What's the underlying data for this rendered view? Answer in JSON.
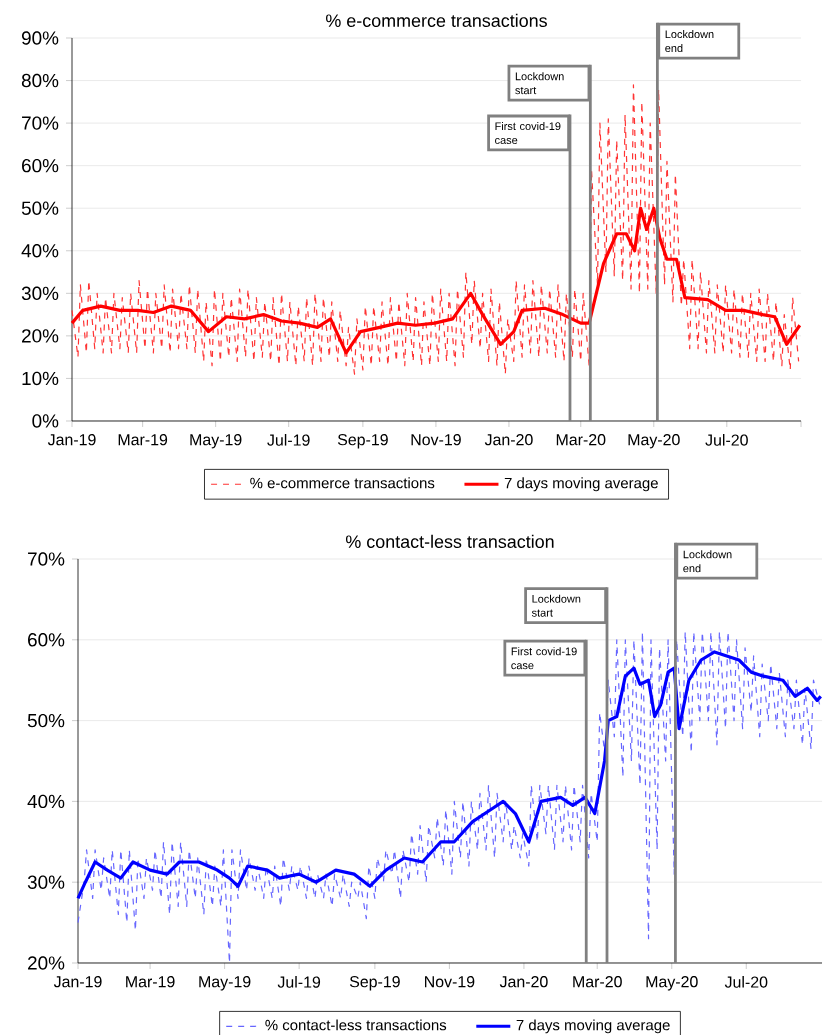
{
  "chart_data": [
    {
      "type": "line",
      "title": "% e-commerce transactions",
      "x": [
        "2019-01-01",
        "2019-01-06",
        "2019-01-08",
        "2019-01-13",
        "2019-01-15",
        "2019-01-20",
        "2019-01-22",
        "2019-01-27",
        "2019-01-29",
        "2019-02-03",
        "2019-02-05",
        "2019-02-10",
        "2019-02-12",
        "2019-02-17",
        "2019-02-19",
        "2019-02-24",
        "2019-02-26",
        "2019-03-03",
        "2019-03-05",
        "2019-03-10",
        "2019-03-12",
        "2019-03-17",
        "2019-03-19",
        "2019-03-24",
        "2019-03-26",
        "2019-03-31",
        "2019-04-02",
        "2019-04-07",
        "2019-04-09",
        "2019-04-14",
        "2019-04-16",
        "2019-04-21",
        "2019-04-23",
        "2019-04-28",
        "2019-04-30",
        "2019-05-05",
        "2019-05-07",
        "2019-05-12",
        "2019-05-14",
        "2019-05-19",
        "2019-05-21",
        "2019-05-26",
        "2019-05-28",
        "2019-06-02",
        "2019-06-04",
        "2019-06-09",
        "2019-06-11",
        "2019-06-16",
        "2019-06-18",
        "2019-06-23",
        "2019-06-25",
        "2019-06-30",
        "2019-07-02",
        "2019-07-07",
        "2019-07-09",
        "2019-07-14",
        "2019-07-16",
        "2019-07-21",
        "2019-07-23",
        "2019-07-28",
        "2019-07-30",
        "2019-08-04",
        "2019-08-06",
        "2019-08-11",
        "2019-08-13",
        "2019-08-18",
        "2019-08-20",
        "2019-08-25",
        "2019-08-27",
        "2019-09-01",
        "2019-09-03",
        "2019-09-08",
        "2019-09-10",
        "2019-09-15",
        "2019-09-17",
        "2019-09-22",
        "2019-09-24",
        "2019-09-29",
        "2019-10-01",
        "2019-10-06",
        "2019-10-08",
        "2019-10-13",
        "2019-10-15",
        "2019-10-20",
        "2019-10-22",
        "2019-10-27",
        "2019-10-29",
        "2019-11-03",
        "2019-11-05",
        "2019-11-10",
        "2019-11-12",
        "2019-11-17",
        "2019-11-19",
        "2019-11-24",
        "2019-11-26",
        "2019-12-01",
        "2019-12-03",
        "2019-12-08",
        "2019-12-10",
        "2019-12-15",
        "2019-12-17",
        "2019-12-22",
        "2019-12-24",
        "2019-12-29",
        "2019-12-31",
        "2020-01-05",
        "2020-01-07",
        "2020-01-12",
        "2020-01-14",
        "2020-01-19",
        "2020-01-21",
        "2020-01-26",
        "2020-01-28",
        "2020-02-02",
        "2020-02-04",
        "2020-02-09",
        "2020-02-11",
        "2020-02-16",
        "2020-02-18",
        "2020-02-23",
        "2020-02-25",
        "2020-03-01",
        "2020-03-03",
        "2020-03-08",
        "2020-03-10",
        "2020-03-15",
        "2020-03-17",
        "2020-03-22",
        "2020-03-24",
        "2020-03-29",
        "2020-03-31",
        "2020-04-05",
        "2020-04-07",
        "2020-04-12",
        "2020-04-14",
        "2020-04-19",
        "2020-04-21",
        "2020-04-26",
        "2020-04-28",
        "2020-05-03",
        "2020-05-05",
        "2020-05-10",
        "2020-05-12",
        "2020-05-17",
        "2020-05-19",
        "2020-05-24",
        "2020-05-26",
        "2020-05-31",
        "2020-06-02",
        "2020-06-07",
        "2020-06-09",
        "2020-06-14",
        "2020-06-16",
        "2020-06-21",
        "2020-06-23",
        "2020-06-28",
        "2020-06-30",
        "2020-07-05",
        "2020-07-07",
        "2020-07-12",
        "2020-07-14",
        "2020-07-19",
        "2020-07-21",
        "2020-07-26",
        "2020-07-28",
        "2020-08-02",
        "2020-08-04",
        "2020-08-09",
        "2020-08-11",
        "2020-08-16",
        "2020-08-18",
        "2020-08-23",
        "2020-08-25",
        "2020-08-30"
      ],
      "xlim": [
        "2019-01-01",
        "2020-09-01"
      ],
      "xticks": [
        {
          "value": "2019-01-01",
          "label": "Jan-19"
        },
        {
          "value": "2019-03-01",
          "label": "Mar-19"
        },
        {
          "value": "2019-05-01",
          "label": "May-19"
        },
        {
          "value": "2019-07-01",
          "label": "Jul-19"
        },
        {
          "value": "2019-09-01",
          "label": "Sep-19"
        },
        {
          "value": "2019-11-01",
          "label": "Nov-19"
        },
        {
          "value": "2020-01-01",
          "label": "Jan-20"
        },
        {
          "value": "2020-03-01",
          "label": "Mar-20"
        },
        {
          "value": "2020-05-01",
          "label": "May-20"
        },
        {
          "value": "2020-07-01",
          "label": "Jul-20"
        },
        {
          "value": "2020-09-01",
          "label": null
        }
      ],
      "ylim": [
        0,
        90
      ],
      "yticks": [
        {
          "value": 0,
          "label": "0%"
        },
        {
          "value": 10,
          "label": "10%"
        },
        {
          "value": 20,
          "label": "20%"
        },
        {
          "value": 30,
          "label": "30%"
        },
        {
          "value": 40,
          "label": "40%"
        },
        {
          "value": 50,
          "label": "50%"
        },
        {
          "value": 60,
          "label": "60%"
        },
        {
          "value": 70,
          "label": "70%"
        },
        {
          "value": 80,
          "label": "80%"
        },
        {
          "value": 90,
          "label": "90%"
        }
      ],
      "grid": "y",
      "legend": "bottom",
      "marker": "none",
      "series": [
        {
          "name": "% e-commerce transactions",
          "color": "#ff3333",
          "line_style": "dashed",
          "values": [
            26,
            15,
            32,
            16,
            33,
            17,
            30,
            16,
            29,
            16,
            30,
            17,
            29,
            16,
            30,
            16,
            33,
            17,
            31,
            16,
            30,
            17,
            32,
            16,
            31,
            17,
            30,
            17,
            32,
            16,
            31,
            14,
            28,
            13,
            31,
            14,
            30,
            15,
            29,
            14,
            31,
            15,
            31,
            14,
            29,
            15,
            28,
            14,
            29,
            13,
            30,
            14,
            28,
            13,
            27,
            14,
            29,
            13,
            30,
            14,
            29,
            15,
            28,
            14,
            26,
            13,
            22,
            11,
            24,
            12,
            27,
            13,
            27,
            14,
            28,
            13,
            29,
            14,
            28,
            13,
            30,
            14,
            29,
            13,
            28,
            13,
            30,
            14,
            31,
            14,
            30,
            13,
            31,
            15,
            35,
            18,
            33,
            17,
            30,
            14,
            31,
            13,
            28,
            11,
            24,
            14,
            33,
            15,
            32,
            16,
            33,
            15,
            32,
            16,
            31,
            15,
            32,
            14,
            30,
            15,
            31,
            14,
            30,
            13,
            59,
            32,
            70,
            35,
            71,
            34,
            66,
            33,
            72,
            31,
            79,
            30,
            75,
            31,
            70,
            30,
            78,
            32,
            61,
            28,
            58,
            27,
            38,
            17,
            38,
            17,
            35,
            16,
            33,
            16,
            32,
            16,
            32,
            16,
            31,
            15,
            30,
            15,
            30,
            14,
            31,
            14,
            30,
            14,
            28,
            13,
            25,
            12,
            29,
            14
          ]
        },
        {
          "name": "7 days moving average",
          "color": "#ff0000",
          "line_style": "solid",
          "x": [
            "2019-01-01",
            "2019-01-10",
            "2019-01-25",
            "2019-02-10",
            "2019-02-25",
            "2019-03-10",
            "2019-03-25",
            "2019-04-10",
            "2019-04-25",
            "2019-05-10",
            "2019-05-25",
            "2019-06-10",
            "2019-06-25",
            "2019-07-10",
            "2019-07-25",
            "2019-08-05",
            "2019-08-18",
            "2019-08-30",
            "2019-09-15",
            "2019-09-30",
            "2019-10-15",
            "2019-10-31",
            "2019-11-15",
            "2019-11-30",
            "2019-12-10",
            "2019-12-25",
            "2020-01-05",
            "2020-01-12",
            "2020-01-31",
            "2020-02-15",
            "2020-03-01",
            "2020-03-08",
            "2020-03-20",
            "2020-03-31",
            "2020-04-08",
            "2020-04-15",
            "2020-04-20",
            "2020-04-25",
            "2020-05-01",
            "2020-05-06",
            "2020-05-12",
            "2020-05-20",
            "2020-05-27",
            "2020-06-15",
            "2020-06-30",
            "2020-07-15",
            "2020-07-31",
            "2020-08-10",
            "2020-08-20",
            "2020-08-31"
          ],
          "values": [
            23,
            26,
            27,
            26,
            26,
            25.5,
            27,
            26,
            21,
            24.5,
            24,
            25,
            23.5,
            23,
            22,
            24,
            16,
            21,
            22,
            23,
            22.5,
            23,
            24,
            30,
            25,
            18,
            21,
            26,
            26.5,
            25,
            23,
            23,
            37,
            44,
            44,
            40,
            50,
            45,
            50,
            43,
            38,
            38,
            29,
            28.5,
            26,
            26,
            25,
            24.5,
            18,
            22.5
          ]
        }
      ],
      "ref_lines": [
        {
          "axis": "x",
          "value": "2020-02-21",
          "label": "First covid-19 case",
          "color": "#808080"
        },
        {
          "axis": "x",
          "value": "2020-03-09",
          "label": "Lockdown start",
          "color": "#808080"
        },
        {
          "axis": "x",
          "value": "2020-05-04",
          "label": "Lockdown end",
          "color": "#808080"
        }
      ]
    },
    {
      "type": "line",
      "title": "% contact-less transaction",
      "x": [
        "2019-01-01",
        "2019-01-06",
        "2019-01-08",
        "2019-01-13",
        "2019-01-15",
        "2019-01-20",
        "2019-01-22",
        "2019-01-27",
        "2019-01-29",
        "2019-02-03",
        "2019-02-05",
        "2019-02-10",
        "2019-02-12",
        "2019-02-17",
        "2019-02-19",
        "2019-02-24",
        "2019-02-26",
        "2019-03-03",
        "2019-03-05",
        "2019-03-10",
        "2019-03-12",
        "2019-03-17",
        "2019-03-19",
        "2019-03-24",
        "2019-03-26",
        "2019-03-31",
        "2019-04-02",
        "2019-04-07",
        "2019-04-09",
        "2019-04-14",
        "2019-04-16",
        "2019-04-21",
        "2019-04-23",
        "2019-04-28",
        "2019-04-30",
        "2019-05-05",
        "2019-05-07",
        "2019-05-12",
        "2019-05-14",
        "2019-05-19",
        "2019-05-21",
        "2019-05-26",
        "2019-05-28",
        "2019-06-02",
        "2019-06-04",
        "2019-06-09",
        "2019-06-11",
        "2019-06-16",
        "2019-06-18",
        "2019-06-23",
        "2019-06-25",
        "2019-06-30",
        "2019-07-02",
        "2019-07-07",
        "2019-07-09",
        "2019-07-14",
        "2019-07-16",
        "2019-07-21",
        "2019-07-23",
        "2019-07-28",
        "2019-07-30",
        "2019-08-04",
        "2019-08-06",
        "2019-08-11",
        "2019-08-13",
        "2019-08-18",
        "2019-08-20",
        "2019-08-25",
        "2019-08-27",
        "2019-09-01",
        "2019-09-03",
        "2019-09-08",
        "2019-09-10",
        "2019-09-15",
        "2019-09-17",
        "2019-09-22",
        "2019-09-24",
        "2019-09-29",
        "2019-10-01",
        "2019-10-06",
        "2019-10-08",
        "2019-10-13",
        "2019-10-15",
        "2019-10-20",
        "2019-10-22",
        "2019-10-27",
        "2019-10-29",
        "2019-11-03",
        "2019-11-05",
        "2019-11-10",
        "2019-11-12",
        "2019-11-17",
        "2019-11-19",
        "2019-11-24",
        "2019-11-26",
        "2019-12-01",
        "2019-12-03",
        "2019-12-08",
        "2019-12-10",
        "2019-12-15",
        "2019-12-17",
        "2019-12-22",
        "2019-12-24",
        "2019-12-29",
        "2019-12-31",
        "2020-01-05",
        "2020-01-07",
        "2020-01-12",
        "2020-01-14",
        "2020-01-19",
        "2020-01-21",
        "2020-01-26",
        "2020-01-28",
        "2020-02-02",
        "2020-02-04",
        "2020-02-09",
        "2020-02-11",
        "2020-02-16",
        "2020-02-18",
        "2020-02-23",
        "2020-02-25",
        "2020-03-01",
        "2020-03-03",
        "2020-03-08",
        "2020-03-10",
        "2020-03-15",
        "2020-03-17",
        "2020-03-22",
        "2020-03-24",
        "2020-03-29",
        "2020-03-31",
        "2020-04-05",
        "2020-04-07",
        "2020-04-12",
        "2020-04-14",
        "2020-04-19",
        "2020-04-21",
        "2020-04-26",
        "2020-04-28",
        "2020-05-03",
        "2020-05-05",
        "2020-05-10",
        "2020-05-12",
        "2020-05-17",
        "2020-05-19",
        "2020-05-24",
        "2020-05-26",
        "2020-05-31",
        "2020-06-02",
        "2020-06-07",
        "2020-06-09",
        "2020-06-14",
        "2020-06-16",
        "2020-06-21",
        "2020-06-23",
        "2020-06-28",
        "2020-06-30",
        "2020-07-05",
        "2020-07-07",
        "2020-07-12",
        "2020-07-14",
        "2020-07-19",
        "2020-07-21",
        "2020-07-26",
        "2020-07-28",
        "2020-08-02",
        "2020-08-04",
        "2020-08-09",
        "2020-08-11",
        "2020-08-16",
        "2020-08-18",
        "2020-08-23",
        "2020-08-25",
        "2020-08-30"
      ],
      "xlim": [
        "2019-01-01",
        "2020-09-01"
      ],
      "xticks": [
        {
          "value": "2019-01-01",
          "label": "Jan-19"
        },
        {
          "value": "2019-03-01",
          "label": "Mar-19"
        },
        {
          "value": "2019-05-01",
          "label": "May-19"
        },
        {
          "value": "2019-07-01",
          "label": "Jul-19"
        },
        {
          "value": "2019-09-01",
          "label": "Sep-19"
        },
        {
          "value": "2019-11-01",
          "label": "Nov-19"
        },
        {
          "value": "2020-01-01",
          "label": "Jan-20"
        },
        {
          "value": "2020-03-01",
          "label": "Mar-20"
        },
        {
          "value": "2020-05-01",
          "label": "May-20"
        },
        {
          "value": "2020-07-01",
          "label": "Jul-20"
        }
      ],
      "ylim": [
        20,
        70
      ],
      "yticks": [
        {
          "value": 20,
          "label": "20%"
        },
        {
          "value": 30,
          "label": "30%"
        },
        {
          "value": 40,
          "label": "40%"
        },
        {
          "value": 50,
          "label": "50%"
        },
        {
          "value": 60,
          "label": "60%"
        },
        {
          "value": 70,
          "label": "70%"
        }
      ],
      "grid": "y",
      "legend": "bottom",
      "marker": "none",
      "series": [
        {
          "name": "% contact-less transactions",
          "color": "#6666ff",
          "line_style": "dashed",
          "values": [
            25,
            30,
            34,
            28,
            34,
            29,
            33,
            28,
            34,
            26,
            34,
            25,
            34,
            24,
            33,
            28,
            33,
            29,
            34,
            28,
            35,
            26,
            35,
            27,
            35,
            27,
            34,
            28,
            33,
            26,
            33,
            27,
            32,
            27,
            34,
            20,
            34,
            28,
            34,
            29,
            33,
            29,
            32,
            28,
            32,
            28,
            32,
            27,
            33,
            29,
            32,
            29,
            32,
            28,
            32,
            28,
            31,
            28,
            31,
            27,
            31,
            28,
            31,
            27,
            30,
            28,
            30,
            25.5,
            32,
            28,
            33,
            30,
            34,
            31,
            34,
            28,
            34,
            30,
            36,
            31,
            37,
            30,
            37,
            33,
            38,
            32,
            39,
            31,
            40,
            33,
            40,
            32,
            40,
            34,
            41,
            34,
            42,
            33,
            41,
            35,
            40,
            34,
            37,
            33,
            36,
            32,
            42,
            35,
            42,
            36,
            42,
            34,
            42,
            35,
            42,
            34,
            42,
            35,
            42,
            33,
            41,
            35,
            51,
            45,
            55,
            48,
            60,
            43,
            60,
            45,
            60,
            42,
            61,
            23,
            60,
            34,
            59,
            45,
            60,
            31,
            60,
            48,
            61,
            46,
            61,
            50,
            61,
            50,
            61,
            47,
            61,
            49,
            61,
            50,
            60,
            49,
            59,
            51,
            58,
            48,
            57,
            50,
            57,
            49,
            56,
            48,
            55,
            49,
            55,
            47,
            54,
            46.5,
            55,
            52
          ]
        },
        {
          "name": "7 days moving average",
          "color": "#0000ff",
          "line_style": "solid",
          "x": [
            "2019-01-01",
            "2019-01-07",
            "2019-01-15",
            "2019-01-25",
            "2019-02-05",
            "2019-02-15",
            "2019-03-01",
            "2019-03-15",
            "2019-03-25",
            "2019-04-10",
            "2019-04-25",
            "2019-05-05",
            "2019-05-12",
            "2019-05-20",
            "2019-06-05",
            "2019-06-15",
            "2019-07-01",
            "2019-07-15",
            "2019-07-31",
            "2019-08-15",
            "2019-08-28",
            "2019-09-10",
            "2019-09-25",
            "2019-10-10",
            "2019-10-25",
            "2019-11-05",
            "2019-11-20",
            "2019-12-05",
            "2019-12-15",
            "2019-12-25",
            "2020-01-05",
            "2020-01-15",
            "2020-01-31",
            "2020-02-10",
            "2020-02-20",
            "2020-02-28",
            "2020-03-07",
            "2020-03-10",
            "2020-03-17",
            "2020-03-24",
            "2020-03-31",
            "2020-04-05",
            "2020-04-12",
            "2020-04-17",
            "2020-04-22",
            "2020-04-28",
            "2020-05-03",
            "2020-05-07",
            "2020-05-15",
            "2020-05-25",
            "2020-06-05",
            "2020-06-15",
            "2020-06-25",
            "2020-07-05",
            "2020-07-15",
            "2020-07-31",
            "2020-08-10",
            "2020-08-20",
            "2020-08-28",
            "2020-08-31"
          ],
          "values": [
            28,
            30,
            32.5,
            31.5,
            30.5,
            32.5,
            31.5,
            31,
            32.5,
            32.5,
            31.5,
            30.5,
            29.5,
            32,
            31.5,
            30.5,
            31,
            30,
            31.5,
            31,
            29.5,
            31.5,
            33,
            32.5,
            35,
            35,
            37.5,
            39,
            40,
            38.5,
            35,
            40,
            40.5,
            39.5,
            40.5,
            38.5,
            45,
            50,
            50.5,
            55.5,
            56.5,
            54.5,
            55,
            50.5,
            52,
            56,
            56.5,
            49,
            55,
            57.5,
            58.5,
            58,
            57.5,
            56,
            55.5,
            55,
            53,
            54,
            52.5,
            53
          ]
        }
      ],
      "ref_lines": [
        {
          "axis": "x",
          "value": "2020-02-21",
          "label": "First covid-19 case",
          "color": "#808080"
        },
        {
          "axis": "x",
          "value": "2020-03-09",
          "label": "Lockdown start",
          "color": "#808080"
        },
        {
          "axis": "x",
          "value": "2020-05-04",
          "label": "Lockdown end",
          "color": "#808080"
        }
      ]
    }
  ]
}
